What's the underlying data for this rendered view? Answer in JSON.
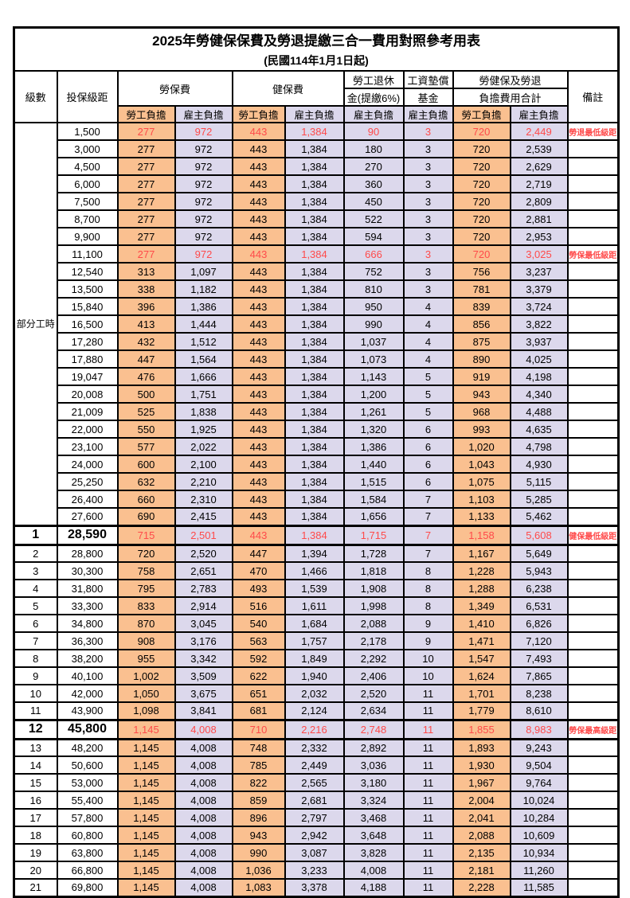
{
  "title": "2025年勞健保保費及勞退提繳三合一費用對照參考用表",
  "subtitle": "(民國114年1月1日起)",
  "columns": {
    "level": "級數",
    "bracket": "投保級距",
    "labor_group": "勞保費",
    "health_group": "健保費",
    "pension_line1": "勞工退休",
    "pension_line2": "金(提繳6%)",
    "wage_fund_line1": "工資墊償",
    "wage_fund_line2": "基金",
    "total_line1": "勞健保及勞退",
    "total_line2": "負擔費用合計",
    "remark": "備註",
    "employee": "勞工負擔",
    "employer": "雇主負擔"
  },
  "part_time_label": "部分工時",
  "colors": {
    "employee_bg": "#FAC090",
    "employer_bg": "#DCD8EC",
    "highlight_red": "#FF4A4A",
    "border": "#000000"
  },
  "rows": [
    {
      "lv": "",
      "sal": "1,500",
      "v": [
        "277",
        "972",
        "443",
        "1,384",
        "90",
        "3",
        "720",
        "2,449"
      ],
      "rm": "勞退最低級距",
      "red": true,
      "big": false
    },
    {
      "lv": "",
      "sal": "3,000",
      "v": [
        "277",
        "972",
        "443",
        "1,384",
        "180",
        "3",
        "720",
        "2,539"
      ],
      "rm": "",
      "red": false,
      "big": false
    },
    {
      "lv": "",
      "sal": "4,500",
      "v": [
        "277",
        "972",
        "443",
        "1,384",
        "270",
        "3",
        "720",
        "2,629"
      ],
      "rm": "",
      "red": false,
      "big": false
    },
    {
      "lv": "",
      "sal": "6,000",
      "v": [
        "277",
        "972",
        "443",
        "1,384",
        "360",
        "3",
        "720",
        "2,719"
      ],
      "rm": "",
      "red": false,
      "big": false
    },
    {
      "lv": "",
      "sal": "7,500",
      "v": [
        "277",
        "972",
        "443",
        "1,384",
        "450",
        "3",
        "720",
        "2,809"
      ],
      "rm": "",
      "red": false,
      "big": false
    },
    {
      "lv": "",
      "sal": "8,700",
      "v": [
        "277",
        "972",
        "443",
        "1,384",
        "522",
        "3",
        "720",
        "2,881"
      ],
      "rm": "",
      "red": false,
      "big": false
    },
    {
      "lv": "",
      "sal": "9,900",
      "v": [
        "277",
        "972",
        "443",
        "1,384",
        "594",
        "3",
        "720",
        "2,953"
      ],
      "rm": "",
      "red": false,
      "big": false
    },
    {
      "lv": "",
      "sal": "11,100",
      "v": [
        "277",
        "972",
        "443",
        "1,384",
        "666",
        "3",
        "720",
        "3,025"
      ],
      "rm": "勞保最低級距",
      "red": true,
      "big": false
    },
    {
      "lv": "",
      "sal": "12,540",
      "v": [
        "313",
        "1,097",
        "443",
        "1,384",
        "752",
        "3",
        "756",
        "3,237"
      ],
      "rm": "",
      "red": false,
      "big": false
    },
    {
      "lv": "",
      "sal": "13,500",
      "v": [
        "338",
        "1,182",
        "443",
        "1,384",
        "810",
        "3",
        "781",
        "3,379"
      ],
      "rm": "",
      "red": false,
      "big": false
    },
    {
      "lv": "",
      "sal": "15,840",
      "v": [
        "396",
        "1,386",
        "443",
        "1,384",
        "950",
        "4",
        "839",
        "3,724"
      ],
      "rm": "",
      "red": false,
      "big": false
    },
    {
      "lv": "",
      "sal": "16,500",
      "v": [
        "413",
        "1,444",
        "443",
        "1,384",
        "990",
        "4",
        "856",
        "3,822"
      ],
      "rm": "",
      "red": false,
      "big": false
    },
    {
      "lv": "",
      "sal": "17,280",
      "v": [
        "432",
        "1,512",
        "443",
        "1,384",
        "1,037",
        "4",
        "875",
        "3,937"
      ],
      "rm": "",
      "red": false,
      "big": false
    },
    {
      "lv": "",
      "sal": "17,880",
      "v": [
        "447",
        "1,564",
        "443",
        "1,384",
        "1,073",
        "4",
        "890",
        "4,025"
      ],
      "rm": "",
      "red": false,
      "big": false
    },
    {
      "lv": "",
      "sal": "19,047",
      "v": [
        "476",
        "1,666",
        "443",
        "1,384",
        "1,143",
        "5",
        "919",
        "4,198"
      ],
      "rm": "",
      "red": false,
      "big": false
    },
    {
      "lv": "",
      "sal": "20,008",
      "v": [
        "500",
        "1,751",
        "443",
        "1,384",
        "1,200",
        "5",
        "943",
        "4,340"
      ],
      "rm": "",
      "red": false,
      "big": false
    },
    {
      "lv": "",
      "sal": "21,009",
      "v": [
        "525",
        "1,838",
        "443",
        "1,384",
        "1,261",
        "5",
        "968",
        "4,488"
      ],
      "rm": "",
      "red": false,
      "big": false
    },
    {
      "lv": "",
      "sal": "22,000",
      "v": [
        "550",
        "1,925",
        "443",
        "1,384",
        "1,320",
        "6",
        "993",
        "4,635"
      ],
      "rm": "",
      "red": false,
      "big": false
    },
    {
      "lv": "",
      "sal": "23,100",
      "v": [
        "577",
        "2,022",
        "443",
        "1,384",
        "1,386",
        "6",
        "1,020",
        "4,798"
      ],
      "rm": "",
      "red": false,
      "big": false
    },
    {
      "lv": "",
      "sal": "24,000",
      "v": [
        "600",
        "2,100",
        "443",
        "1,384",
        "1,440",
        "6",
        "1,043",
        "4,930"
      ],
      "rm": "",
      "red": false,
      "big": false
    },
    {
      "lv": "",
      "sal": "25,250",
      "v": [
        "632",
        "2,210",
        "443",
        "1,384",
        "1,515",
        "6",
        "1,075",
        "5,115"
      ],
      "rm": "",
      "red": false,
      "big": false
    },
    {
      "lv": "",
      "sal": "26,400",
      "v": [
        "660",
        "2,310",
        "443",
        "1,384",
        "1,584",
        "7",
        "1,103",
        "5,285"
      ],
      "rm": "",
      "red": false,
      "big": false
    },
    {
      "lv": "",
      "sal": "27,600",
      "v": [
        "690",
        "2,415",
        "443",
        "1,384",
        "1,656",
        "7",
        "1,133",
        "5,462"
      ],
      "rm": "",
      "red": false,
      "big": false
    },
    {
      "lv": "1",
      "sal": "28,590",
      "v": [
        "715",
        "2,501",
        "443",
        "1,384",
        "1,715",
        "7",
        "1,158",
        "5,608"
      ],
      "rm": "健保最低級距",
      "red": true,
      "big": true
    },
    {
      "lv": "2",
      "sal": "28,800",
      "v": [
        "720",
        "2,520",
        "447",
        "1,394",
        "1,728",
        "7",
        "1,167",
        "5,649"
      ],
      "rm": "",
      "red": false,
      "big": false
    },
    {
      "lv": "3",
      "sal": "30,300",
      "v": [
        "758",
        "2,651",
        "470",
        "1,466",
        "1,818",
        "8",
        "1,228",
        "5,943"
      ],
      "rm": "",
      "red": false,
      "big": false
    },
    {
      "lv": "4",
      "sal": "31,800",
      "v": [
        "795",
        "2,783",
        "493",
        "1,539",
        "1,908",
        "8",
        "1,288",
        "6,238"
      ],
      "rm": "",
      "red": false,
      "big": false
    },
    {
      "lv": "5",
      "sal": "33,300",
      "v": [
        "833",
        "2,914",
        "516",
        "1,611",
        "1,998",
        "8",
        "1,349",
        "6,531"
      ],
      "rm": "",
      "red": false,
      "big": false
    },
    {
      "lv": "6",
      "sal": "34,800",
      "v": [
        "870",
        "3,045",
        "540",
        "1,684",
        "2,088",
        "9",
        "1,410",
        "6,826"
      ],
      "rm": "",
      "red": false,
      "big": false
    },
    {
      "lv": "7",
      "sal": "36,300",
      "v": [
        "908",
        "3,176",
        "563",
        "1,757",
        "2,178",
        "9",
        "1,471",
        "7,120"
      ],
      "rm": "",
      "red": false,
      "big": false
    },
    {
      "lv": "8",
      "sal": "38,200",
      "v": [
        "955",
        "3,342",
        "592",
        "1,849",
        "2,292",
        "10",
        "1,547",
        "7,493"
      ],
      "rm": "",
      "red": false,
      "big": false
    },
    {
      "lv": "9",
      "sal": "40,100",
      "v": [
        "1,002",
        "3,509",
        "622",
        "1,940",
        "2,406",
        "10",
        "1,624",
        "7,865"
      ],
      "rm": "",
      "red": false,
      "big": false
    },
    {
      "lv": "10",
      "sal": "42,000",
      "v": [
        "1,050",
        "3,675",
        "651",
        "2,032",
        "2,520",
        "11",
        "1,701",
        "8,238"
      ],
      "rm": "",
      "red": false,
      "big": false
    },
    {
      "lv": "11",
      "sal": "43,900",
      "v": [
        "1,098",
        "3,841",
        "681",
        "2,124",
        "2,634",
        "11",
        "1,779",
        "8,610"
      ],
      "rm": "",
      "red": false,
      "big": false
    },
    {
      "lv": "12",
      "sal": "45,800",
      "v": [
        "1,145",
        "4,008",
        "710",
        "2,216",
        "2,748",
        "11",
        "1,855",
        "8,983"
      ],
      "rm": "勞保最高級距",
      "red": true,
      "big": true
    },
    {
      "lv": "13",
      "sal": "48,200",
      "v": [
        "1,145",
        "4,008",
        "748",
        "2,332",
        "2,892",
        "11",
        "1,893",
        "9,243"
      ],
      "rm": "",
      "red": false,
      "big": false
    },
    {
      "lv": "14",
      "sal": "50,600",
      "v": [
        "1,145",
        "4,008",
        "785",
        "2,449",
        "3,036",
        "11",
        "1,930",
        "9,504"
      ],
      "rm": "",
      "red": false,
      "big": false
    },
    {
      "lv": "15",
      "sal": "53,000",
      "v": [
        "1,145",
        "4,008",
        "822",
        "2,565",
        "3,180",
        "11",
        "1,967",
        "9,764"
      ],
      "rm": "",
      "red": false,
      "big": false
    },
    {
      "lv": "16",
      "sal": "55,400",
      "v": [
        "1,145",
        "4,008",
        "859",
        "2,681",
        "3,324",
        "11",
        "2,004",
        "10,024"
      ],
      "rm": "",
      "red": false,
      "big": false
    },
    {
      "lv": "17",
      "sal": "57,800",
      "v": [
        "1,145",
        "4,008",
        "896",
        "2,797",
        "3,468",
        "11",
        "2,041",
        "10,284"
      ],
      "rm": "",
      "red": false,
      "big": false
    },
    {
      "lv": "18",
      "sal": "60,800",
      "v": [
        "1,145",
        "4,008",
        "943",
        "2,942",
        "3,648",
        "11",
        "2,088",
        "10,609"
      ],
      "rm": "",
      "red": false,
      "big": false
    },
    {
      "lv": "19",
      "sal": "63,800",
      "v": [
        "1,145",
        "4,008",
        "990",
        "3,087",
        "3,828",
        "11",
        "2,135",
        "10,934"
      ],
      "rm": "",
      "red": false,
      "big": false
    },
    {
      "lv": "20",
      "sal": "66,800",
      "v": [
        "1,145",
        "4,008",
        "1,036",
        "3,233",
        "4,008",
        "11",
        "2,181",
        "11,260"
      ],
      "rm": "",
      "red": false,
      "big": false
    },
    {
      "lv": "21",
      "sal": "69,800",
      "v": [
        "1,145",
        "4,008",
        "1,083",
        "3,378",
        "4,188",
        "11",
        "2,228",
        "11,585"
      ],
      "rm": "",
      "red": false,
      "big": false
    }
  ]
}
